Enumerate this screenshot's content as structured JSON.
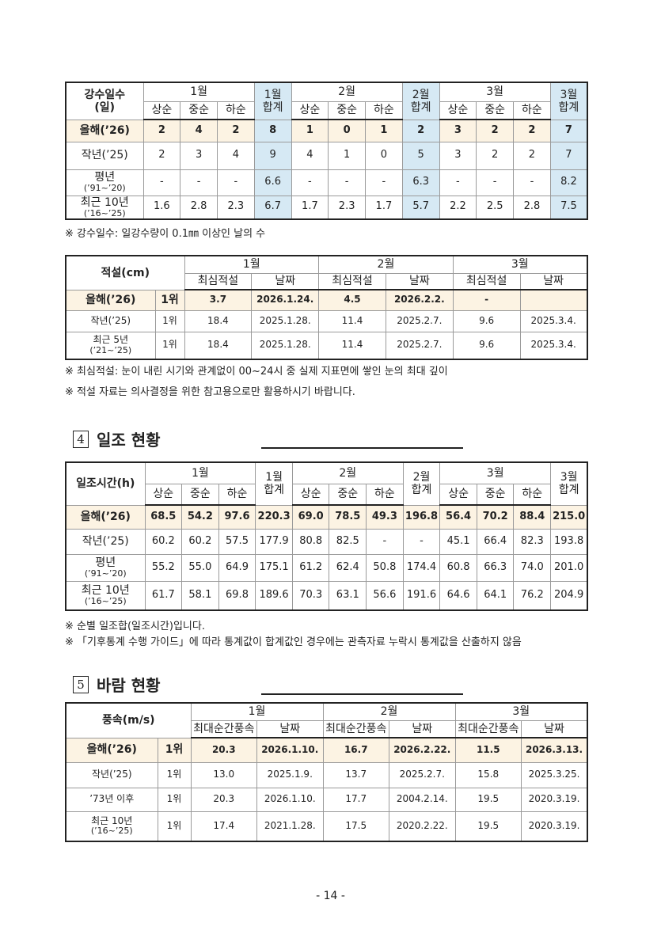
{
  "blocks": [
    {
      "table": {
        "type": "monthly-sum",
        "corner": "강수일수\n(일)",
        "months": [
          "1월",
          "2월",
          "3월"
        ],
        "totals": [
          "1월\n합계",
          "2월\n합계",
          "3월\n합계"
        ],
        "subheaders": [
          "상순",
          "중순",
          "하순"
        ],
        "total_fill": "#d6e9f4",
        "rows": [
          {
            "label": [
              "올해(’26)"
            ],
            "cells": [
              "2",
              "4",
              "2",
              "8",
              "1",
              "0",
              "1",
              "2",
              "3",
              "2",
              "2",
              "7"
            ]
          },
          {
            "label": [
              "작년(’25)"
            ],
            "cells": [
              "2",
              "3",
              "4",
              "9",
              "4",
              "1",
              "0",
              "5",
              "3",
              "2",
              "2",
              "7"
            ]
          },
          {
            "label": [
              "평년",
              "(’91~’20)"
            ],
            "cells": [
              "-",
              "-",
              "-",
              "6.6",
              "-",
              "-",
              "-",
              "6.3",
              "-",
              "-",
              "-",
              "8.2"
            ]
          },
          {
            "label": [
              "최근 10년",
              "(’16~’25)"
            ],
            "cells": [
              "1.6",
              "2.8",
              "2.3",
              "6.7",
              "1.7",
              "2.3",
              "1.7",
              "5.7",
              "2.2",
              "2.5",
              "2.8",
              "7.5"
            ]
          }
        ]
      },
      "notes": [
        "※ 강수일수: 일강수량이 0.1㎜ 이상인 날의 수"
      ]
    },
    {
      "table": {
        "type": "record",
        "corner": "적설(cm)",
        "months": [
          "1월",
          "2월",
          "3월"
        ],
        "subheaders": [
          "최심적설",
          "날짜"
        ],
        "rows": [
          {
            "label": [
              "올해(’26)"
            ],
            "rank": "1위",
            "cells": [
              "3.7",
              "2026.1.24.",
              "4.5",
              "2026.2.2.",
              "-"
            ]
          },
          {
            "label": [
              "작년(’25)"
            ],
            "rank": "1위",
            "cells": [
              "18.4",
              "2025.1.28.",
              "11.4",
              "2025.2.7.",
              "9.6",
              "2025.3.4."
            ]
          },
          {
            "label": [
              "최근 5년",
              "(’21~’25)"
            ],
            "rank": "1위",
            "cells": [
              "18.4",
              "2025.1.28.",
              "11.4",
              "2025.2.7.",
              "9.6",
              "2025.3.4."
            ]
          }
        ]
      },
      "notes": [
        "※ 최심적설: 눈이 내린 시기와 관계없이 00~24시 중 실제 지표면에 쌓인 눈의 최대 깊이",
        "※ 적설 자료는 의사결정을 위한 참고용으로만 활용하시기 바랍니다."
      ]
    },
    {
      "number": "4",
      "title": "일조 현황",
      "table": {
        "type": "monthly-sum",
        "corner": "일조시간(h)",
        "months": [
          "1월",
          "2월",
          "3월"
        ],
        "totals": [
          "1월\n합계",
          "2월\n합계",
          "3월\n합계"
        ],
        "subheaders": [
          "상순",
          "중순",
          "하순"
        ],
        "rows": [
          {
            "label": [
              "올해(’26)"
            ],
            "cells": [
              "68.5",
              "54.2",
              "97.6",
              "220.3",
              "69.0",
              "78.5",
              "49.3",
              "196.8",
              "56.4",
              "70.2",
              "88.4",
              "215.0"
            ]
          },
          {
            "label": [
              "작년(’25)"
            ],
            "cells": [
              "60.2",
              "60.2",
              "57.5",
              "177.9",
              "80.8",
              "82.5",
              "-",
              "-",
              "45.1",
              "66.4",
              "82.3",
              "193.8"
            ]
          },
          {
            "label": [
              "평년",
              "(’91~’20)"
            ],
            "cells": [
              "55.2",
              "55.0",
              "64.9",
              "175.1",
              "61.2",
              "62.4",
              "50.8",
              "174.4",
              "60.8",
              "66.3",
              "74.0",
              "201.0"
            ]
          },
          {
            "label": [
              "최근 10년",
              "(’16~’25)"
            ],
            "cells": [
              "61.7",
              "58.1",
              "69.8",
              "189.6",
              "70.3",
              "63.1",
              "56.6",
              "191.6",
              "64.6",
              "64.1",
              "76.2",
              "204.9"
            ]
          }
        ]
      },
      "notes": [
        "※ 순별 일조합(일조시간)입니다.",
        "※ 「기후통계 수행 가이드」에 따라 통계값이 합계값인 경우에는 관측자료 누락시 통계값을 산출하지 않음"
      ]
    },
    {
      "number": "5",
      "title": "바람 현황",
      "table": {
        "type": "record",
        "corner": "풍속(m/s)",
        "months": [
          "1월",
          "2월",
          "3월"
        ],
        "subheaders": [
          "최대순간풍속",
          "날짜"
        ],
        "rows": [
          {
            "label": [
              "올해(’26)"
            ],
            "rank": "1위",
            "cells": [
              "20.3",
              "2026.1.10.",
              "16.7",
              "2026.2.22.",
              "11.5",
              "2026.3.13."
            ]
          },
          {
            "label": [
              "작년(’25)"
            ],
            "rank": "1위",
            "cells": [
              "13.0",
              "2025.1.9.",
              "13.7",
              "2025.2.7.",
              "15.8",
              "2025.3.25."
            ]
          },
          {
            "label": [
              "’73년 이후"
            ],
            "rank": "1위",
            "cells": [
              "20.3",
              "2026.1.10.",
              "17.7",
              "2004.2.14.",
              "19.5",
              "2020.3.19."
            ]
          },
          {
            "label": [
              "최근 10년",
              "(’16~’25)"
            ],
            "rank": "1위",
            "cells": [
              "17.4",
              "2021.1.28.",
              "17.5",
              "2020.2.22.",
              "19.5",
              "2020.3.19."
            ]
          }
        ]
      }
    }
  ],
  "page_number": "- 14 -"
}
